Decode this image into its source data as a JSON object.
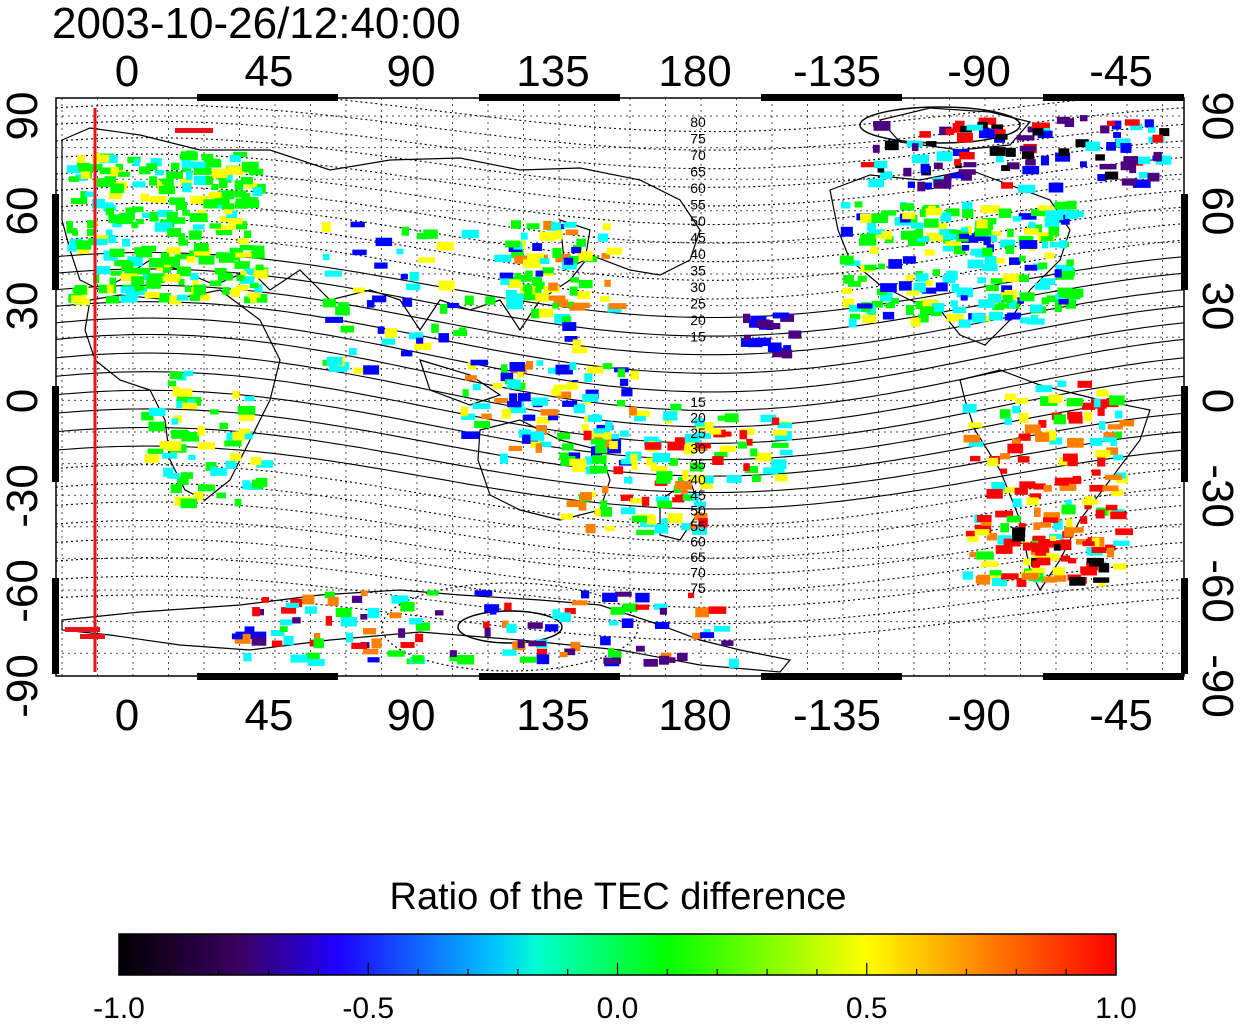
{
  "map": {
    "timestamp": "2003-10-26/12:40:00",
    "lon_ticks": [
      "0",
      "45",
      "90",
      "135",
      "180",
      "-135",
      "-90",
      "-45"
    ],
    "lat_ticks": [
      "90",
      "60",
      "30",
      "0",
      "-30",
      "-60",
      "-90"
    ],
    "contour_labels_north": [
      "80",
      "75",
      "70",
      "65",
      "60",
      "55",
      "50",
      "45",
      "40",
      "35",
      "30",
      "25",
      "20",
      "15"
    ],
    "contour_labels_south": [
      "15",
      "20",
      "25",
      "30",
      "35",
      "40",
      "45",
      "50",
      "55",
      "60",
      "65",
      "70",
      "75"
    ],
    "marker_color": "#e8131b",
    "coastline_color": "#000000"
  },
  "colorbar": {
    "title": "Ratio of the TEC difference",
    "tick_labels": [
      "-1.0",
      "-0.5",
      "0.0",
      "0.5",
      "1.0"
    ],
    "colors": [
      "#000000",
      "#4b0082",
      "#0000ff",
      "#00ffff",
      "#00ff00",
      "#ffff00",
      "#ff8000",
      "#ff0000"
    ]
  }
}
